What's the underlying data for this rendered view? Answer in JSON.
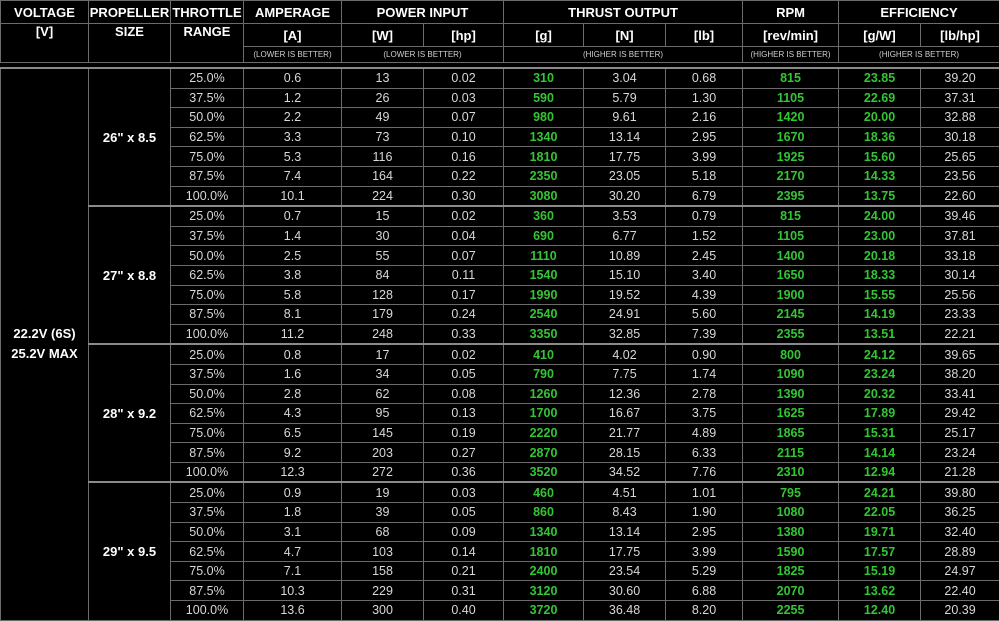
{
  "header": {
    "row1": [
      "VOLTAGE",
      "PROPELLER",
      "THROTTLE",
      "AMPERAGE",
      "POWER INPUT",
      "THRUST OUTPUT",
      "RPM",
      "EFFICIENCY"
    ],
    "row2": [
      "[V]",
      "SIZE",
      "RANGE",
      "[A]",
      "[W]",
      "[hp]",
      "[g]",
      "[N]",
      "[lb]",
      "[rev/min]",
      "[g/W]",
      "[lb/hp]"
    ],
    "notes": {
      "amperage": "(LOWER IS BETTER)",
      "power": "(LOWER IS BETTER)",
      "thrust": "(HIGHER IS BETTER)",
      "rpm": "(HIGHER IS BETTER)",
      "efficiency": "(HIGHER IS BETTER)"
    }
  },
  "voltage": [
    "22.2V (6S)",
    "25.2V MAX"
  ],
  "colors": {
    "highlight": "#34c534",
    "text": "#d8d8d8",
    "background": "#000000"
  },
  "groups": [
    {
      "propeller": "26\" x 8.5",
      "rows": [
        [
          "25.0%",
          "0.6",
          "13",
          "0.02",
          "310",
          "3.04",
          "0.68",
          "815",
          "23.85",
          "39.20"
        ],
        [
          "37.5%",
          "1.2",
          "26",
          "0.03",
          "590",
          "5.79",
          "1.30",
          "1105",
          "22.69",
          "37.31"
        ],
        [
          "50.0%",
          "2.2",
          "49",
          "0.07",
          "980",
          "9.61",
          "2.16",
          "1420",
          "20.00",
          "32.88"
        ],
        [
          "62.5%",
          "3.3",
          "73",
          "0.10",
          "1340",
          "13.14",
          "2.95",
          "1670",
          "18.36",
          "30.18"
        ],
        [
          "75.0%",
          "5.3",
          "116",
          "0.16",
          "1810",
          "17.75",
          "3.99",
          "1925",
          "15.60",
          "25.65"
        ],
        [
          "87.5%",
          "7.4",
          "164",
          "0.22",
          "2350",
          "23.05",
          "5.18",
          "2170",
          "14.33",
          "23.56"
        ],
        [
          "100.0%",
          "10.1",
          "224",
          "0.30",
          "3080",
          "30.20",
          "6.79",
          "2395",
          "13.75",
          "22.60"
        ]
      ]
    },
    {
      "propeller": "27\" x 8.8",
      "rows": [
        [
          "25.0%",
          "0.7",
          "15",
          "0.02",
          "360",
          "3.53",
          "0.79",
          "815",
          "24.00",
          "39.46"
        ],
        [
          "37.5%",
          "1.4",
          "30",
          "0.04",
          "690",
          "6.77",
          "1.52",
          "1105",
          "23.00",
          "37.81"
        ],
        [
          "50.0%",
          "2.5",
          "55",
          "0.07",
          "1110",
          "10.89",
          "2.45",
          "1400",
          "20.18",
          "33.18"
        ],
        [
          "62.5%",
          "3.8",
          "84",
          "0.11",
          "1540",
          "15.10",
          "3.40",
          "1650",
          "18.33",
          "30.14"
        ],
        [
          "75.0%",
          "5.8",
          "128",
          "0.17",
          "1990",
          "19.52",
          "4.39",
          "1900",
          "15.55",
          "25.56"
        ],
        [
          "87.5%",
          "8.1",
          "179",
          "0.24",
          "2540",
          "24.91",
          "5.60",
          "2145",
          "14.19",
          "23.33"
        ],
        [
          "100.0%",
          "11.2",
          "248",
          "0.33",
          "3350",
          "32.85",
          "7.39",
          "2355",
          "13.51",
          "22.21"
        ]
      ]
    },
    {
      "propeller": "28\" x 9.2",
      "rows": [
        [
          "25.0%",
          "0.8",
          "17",
          "0.02",
          "410",
          "4.02",
          "0.90",
          "800",
          "24.12",
          "39.65"
        ],
        [
          "37.5%",
          "1.6",
          "34",
          "0.05",
          "790",
          "7.75",
          "1.74",
          "1090",
          "23.24",
          "38.20"
        ],
        [
          "50.0%",
          "2.8",
          "62",
          "0.08",
          "1260",
          "12.36",
          "2.78",
          "1390",
          "20.32",
          "33.41"
        ],
        [
          "62.5%",
          "4.3",
          "95",
          "0.13",
          "1700",
          "16.67",
          "3.75",
          "1625",
          "17.89",
          "29.42"
        ],
        [
          "75.0%",
          "6.5",
          "145",
          "0.19",
          "2220",
          "21.77",
          "4.89",
          "1865",
          "15.31",
          "25.17"
        ],
        [
          "87.5%",
          "9.2",
          "203",
          "0.27",
          "2870",
          "28.15",
          "6.33",
          "2115",
          "14.14",
          "23.24"
        ],
        [
          "100.0%",
          "12.3",
          "272",
          "0.36",
          "3520",
          "34.52",
          "7.76",
          "2310",
          "12.94",
          "21.28"
        ]
      ]
    },
    {
      "propeller": "29\" x 9.5",
      "rows": [
        [
          "25.0%",
          "0.9",
          "19",
          "0.03",
          "460",
          "4.51",
          "1.01",
          "795",
          "24.21",
          "39.80"
        ],
        [
          "37.5%",
          "1.8",
          "39",
          "0.05",
          "860",
          "8.43",
          "1.90",
          "1080",
          "22.05",
          "36.25"
        ],
        [
          "50.0%",
          "3.1",
          "68",
          "0.09",
          "1340",
          "13.14",
          "2.95",
          "1380",
          "19.71",
          "32.40"
        ],
        [
          "62.5%",
          "4.7",
          "103",
          "0.14",
          "1810",
          "17.75",
          "3.99",
          "1590",
          "17.57",
          "28.89"
        ],
        [
          "75.0%",
          "7.1",
          "158",
          "0.21",
          "2400",
          "23.54",
          "5.29",
          "1825",
          "15.19",
          "24.97"
        ],
        [
          "87.5%",
          "10.3",
          "229",
          "0.31",
          "3120",
          "30.60",
          "6.88",
          "2070",
          "13.62",
          "22.40"
        ],
        [
          "100.0%",
          "13.6",
          "300",
          "0.40",
          "3720",
          "36.48",
          "8.20",
          "2255",
          "12.40",
          "20.39"
        ]
      ]
    }
  ]
}
